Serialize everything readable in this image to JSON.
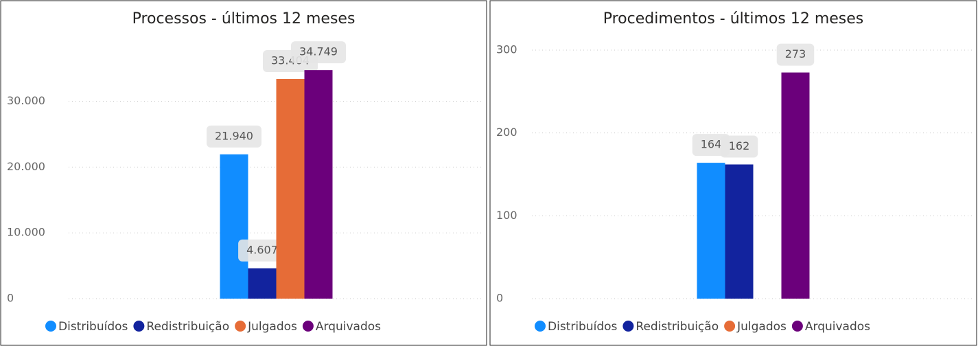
{
  "chart_data": [
    {
      "type": "bar",
      "title": "Processos - últimos 12 meses",
      "series": [
        {
          "name": "Distribuídos",
          "color": "#118dff",
          "values": [
            21940
          ],
          "value_labels": [
            "21.940"
          ]
        },
        {
          "name": "Redistribuição",
          "color": "#12239e",
          "values": [
            4607
          ],
          "value_labels": [
            "4.607"
          ]
        },
        {
          "name": "Julgados",
          "color": "#e66c37",
          "values": [
            33404
          ],
          "value_labels": [
            "33.404"
          ]
        },
        {
          "name": "Arquivados",
          "color": "#6b007b",
          "values": [
            34749
          ],
          "value_labels": [
            "34.749"
          ]
        }
      ],
      "ylim": [
        0,
        38000
      ],
      "yticks": [
        0,
        {
          "value": 10000,
          "label": "10.000"
        },
        {
          "value": 20000,
          "label": "20.000"
        },
        {
          "value": 30000,
          "label": "30.000"
        }
      ],
      "grid": true
    },
    {
      "type": "bar",
      "title": "Procedimentos - últimos 12 meses",
      "series": [
        {
          "name": "Distribuídos",
          "color": "#118dff",
          "values": [
            164
          ]
        },
        {
          "name": "Redistribuição",
          "color": "#12239e",
          "values": [
            162
          ]
        },
        {
          "name": "Julgados",
          "color": "#e66c37",
          "values": [
            null
          ]
        },
        {
          "name": "Arquivados",
          "color": "#6b007b",
          "values": [
            273
          ]
        }
      ],
      "ylim": [
        0,
        300
      ],
      "yticks": [
        0,
        100,
        200,
        300
      ],
      "grid": true
    }
  ]
}
